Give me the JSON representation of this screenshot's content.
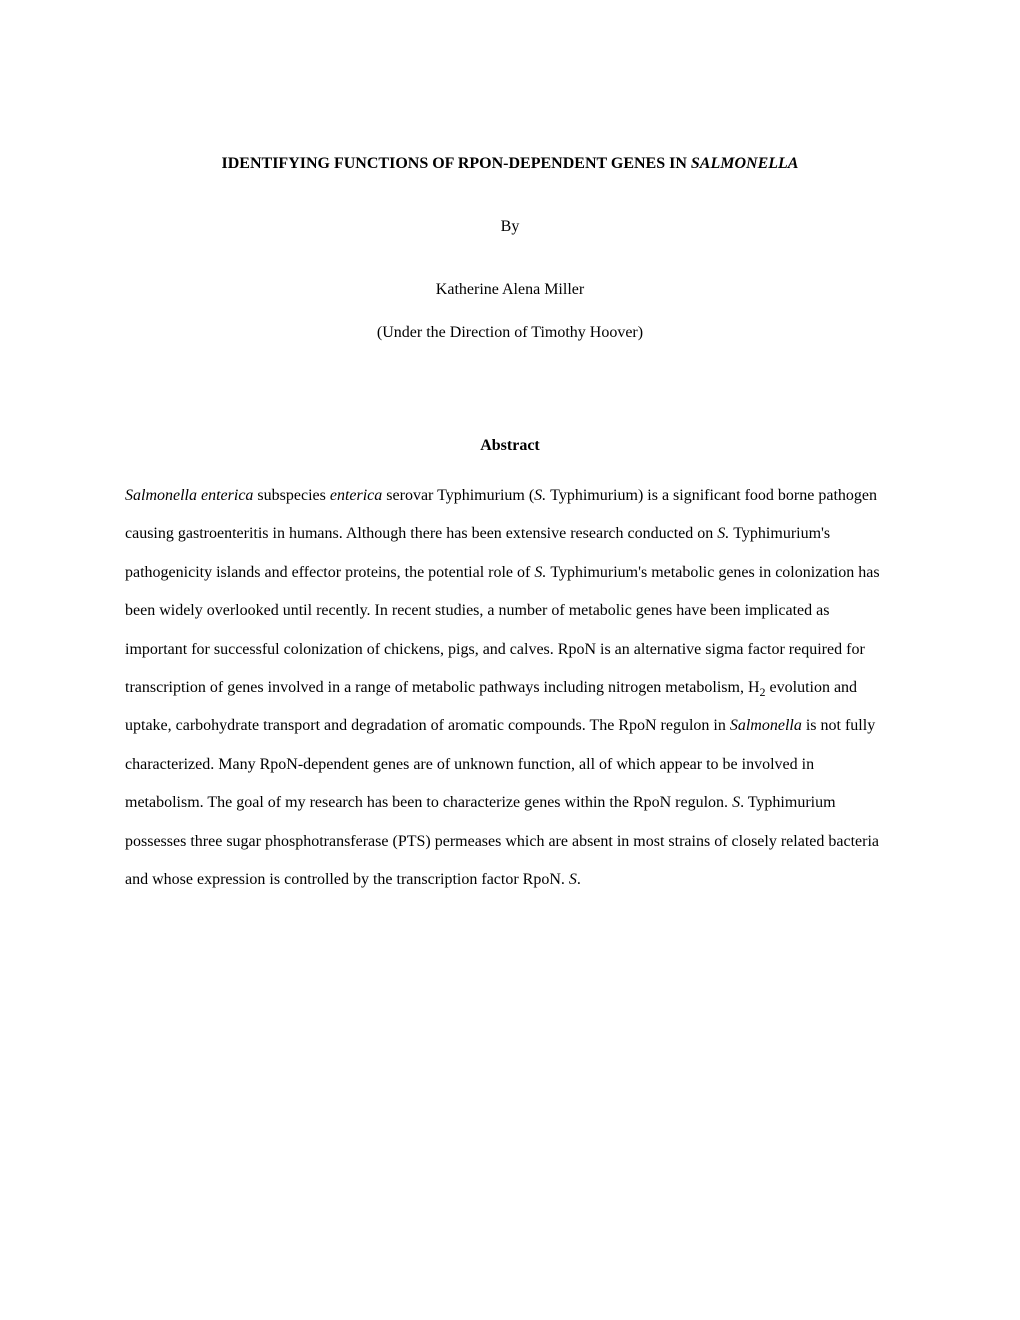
{
  "title_prefix": "IDENTIFYING FUNCTIONS OF RPON-DEPENDENT GENES IN ",
  "title_italic": "SALMONELLA",
  "by_label": "By",
  "author": "Katherine Alena Miller",
  "direction": "(Under the Direction of Timothy Hoover)",
  "abstract_label": "Abstract",
  "p1_s1_i": "Salmonella enterica",
  "p1_s1_a": " subspecies ",
  "p1_s1_ib": "enterica",
  "p1_s1_b": " serovar Typhimurium (",
  "p1_s1_ic": "S. ",
  "p1_s1_c": "Typhimurium) is a significant food borne pathogen causing gastroenteritis in humans.  Although there has been extensive research conducted on ",
  "p1_s1_id": "S. ",
  "p1_s1_d": "Typhimurium's pathogenicity islands and effector proteins, the potential role of ",
  "p1_s1_ie": "S. ",
  "p1_s1_e": "Typhimurium's metabolic genes in colonization has been widely overlooked until recently.  In recent studies, a number of metabolic genes have been implicated as important for successful colonization of chickens, pigs, and calves.  RpoN is an alternative sigma factor required for transcription of genes involved in a range of metabolic pathways including nitrogen metabolism, H",
  "p1_sub": "2",
  "p1_s1_f": " evolution and uptake, carbohydrate transport and degradation of aromatic compounds.  The RpoN regulon in ",
  "p1_s1_if": "Salmonella",
  "p1_s1_g": " is not fully characterized.  Many RpoN-dependent genes are of unknown function, all of which appear to be involved in metabolism.  The goal of my research has been to characterize genes within the RpoN regulon.  ",
  "p1_s1_ig": "S",
  "p1_s1_h": ". Typhimurium possesses three sugar phosphotransferase (PTS) permeases which are absent in most strains of closely related bacteria and whose expression is controlled by the transcription factor RpoN.  ",
  "p1_s1_ih": "S",
  "p1_s1_i2": "."
}
